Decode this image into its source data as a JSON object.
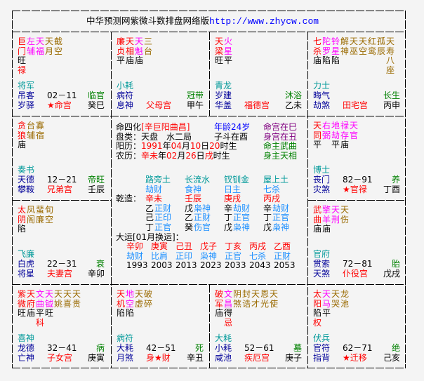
{
  "title": {
    "text": "中华预测网紫微斗数排盘网络版",
    "url": "http://www.zhycw.com"
  },
  "colors": {
    "major": "#ff0000",
    "minor": "#ff00ff",
    "misc": "#9a6a00",
    "boshi": "#009999",
    "sui": "#000099",
    "changsheng": "#008000",
    "palace": "#ff0000",
    "ganzhi": "#000000",
    "range": "#000000",
    "brightness": "#000000",
    "sihua": "#ff0000",
    "blue": "#0000ff",
    "purple": "#800080",
    "green": "#008000",
    "teal": "#009999",
    "god": "#1e90ff",
    "red": "#ff0000",
    "black": "#000000"
  },
  "palaces": [
    {
      "branch": "巳",
      "stars": [
        {
          "n": "巨门",
          "t": "major",
          "b": "旺",
          "h": "禄"
        },
        {
          "n": "左辅",
          "t": "minor"
        },
        {
          "n": "天福",
          "t": "minor"
        },
        {
          "n": "天月",
          "t": "misc"
        },
        {
          "n": "截空",
          "t": "misc"
        }
      ],
      "boshi": "将军",
      "sui": "吊客",
      "jiang": "岁驿",
      "range": "02－11",
      "changsheng": "临官",
      "palace": "★命宫",
      "ganzhi": "癸巳"
    },
    {
      "branch": "午",
      "stars": [
        {
          "n": "廉贞",
          "t": "major",
          "b": "平"
        },
        {
          "n": "天相",
          "t": "major",
          "b": "庙"
        },
        {
          "n": "天魁",
          "t": "minor",
          "b": "庙"
        },
        {
          "n": "三台",
          "t": "misc"
        }
      ],
      "boshi": "小耗",
      "sui": "病符",
      "jiang": "息神",
      "range": "",
      "changsheng": "冠带",
      "palace": "父母宫",
      "ganzhi": "甲午"
    },
    {
      "branch": "未",
      "stars": [
        {
          "n": "天梁",
          "t": "major",
          "b": "旺"
        },
        {
          "n": "火星",
          "t": "minor",
          "b": "平"
        }
      ],
      "boshi": "青龙",
      "sui": "岁建",
      "jiang": "华盖",
      "range": "",
      "changsheng": "沐浴",
      "palace": "福德宫",
      "ganzhi": "乙未"
    },
    {
      "branch": "申",
      "stars": [
        {
          "n": "七杀",
          "t": "major",
          "b": "庙"
        },
        {
          "n": "陀罗",
          "t": "minor",
          "b": "陷"
        },
        {
          "n": "铃星",
          "t": "minor",
          "b": "陷"
        },
        {
          "n": "解神",
          "t": "misc"
        },
        {
          "n": "天巫",
          "t": "misc"
        },
        {
          "n": "天空",
          "t": "misc"
        },
        {
          "n": "红鸾",
          "t": "misc"
        },
        {
          "n": "孤辰",
          "t": "misc"
        },
        {
          "n": "天寿",
          "t": "misc"
        }
      ],
      "extra": [
        {
          "n": "八座",
          "t": "misc"
        }
      ],
      "boshi": "力士",
      "sui": "晦气",
      "jiang": "劫煞",
      "range": "",
      "changsheng": "长生",
      "palace": "田宅宫",
      "ganzhi": "丙申"
    },
    {
      "branch": "辰",
      "stars": [
        {
          "n": "贪狼",
          "t": "major",
          "b": "庙"
        },
        {
          "n": "台辅",
          "t": "misc"
        },
        {
          "n": "寡宿",
          "t": "misc"
        }
      ],
      "boshi": "奏书",
      "sui": "天德",
      "jiang": "攀鞍",
      "range": "12－21",
      "changsheng": "帝旺",
      "palace": "兄弟宫",
      "ganzhi": "壬辰"
    },
    {
      "branch": "酉",
      "stars": [
        {
          "n": "天同",
          "t": "major",
          "b": "平"
        },
        {
          "n": "右弼",
          "t": "minor"
        },
        {
          "n": "地劫",
          "t": "minor",
          "b": "平"
        },
        {
          "n": "禄存",
          "t": "minor",
          "b": "庙"
        },
        {
          "n": "天官",
          "t": "minor"
        }
      ],
      "boshi": "博士",
      "sui": "丧门",
      "jiang": "灾煞",
      "range": "82－91",
      "changsheng": "养",
      "palace": "★官禄",
      "ganzhi": "丁酉"
    },
    {
      "branch": "卯",
      "stars": [
        {
          "n": "太阴",
          "t": "major",
          "b": "陷"
        },
        {
          "n": "凤阁",
          "t": "misc"
        },
        {
          "n": "蜚廉",
          "t": "misc"
        },
        {
          "n": "旬空",
          "t": "misc"
        }
      ],
      "boshi": "飞廉",
      "sui": "白虎",
      "jiang": "将星",
      "range": "22－31",
      "changsheng": "衰",
      "palace": "夫妻宫",
      "ganzhi": "辛卯"
    },
    {
      "branch": "戌",
      "stars": [
        {
          "n": "武曲",
          "t": "major",
          "b": "庙"
        },
        {
          "n": "擎羊",
          "t": "minor",
          "b": "庙"
        },
        {
          "n": "天刑",
          "t": "minor"
        },
        {
          "n": "天伤",
          "t": "misc"
        }
      ],
      "boshi": "官府",
      "sui": "贯索",
      "jiang": "天煞",
      "range": "72－81",
      "changsheng": "胎",
      "palace": "仆役宫",
      "ganzhi": "戊戌"
    },
    {
      "branch": "寅",
      "stars": [
        {
          "n": "紫微",
          "t": "major",
          "b": "旺"
        },
        {
          "n": "天府",
          "t": "major",
          "b": "庙"
        },
        {
          "n": "文曲",
          "t": "minor",
          "b": "平",
          "h": "科"
        },
        {
          "n": "天钺",
          "t": "minor",
          "b": "旺"
        },
        {
          "n": "天姚",
          "t": "misc"
        },
        {
          "n": "天喜",
          "t": "misc"
        },
        {
          "n": "天贵",
          "t": "misc"
        }
      ],
      "boshi": "喜神",
      "sui": "龙德",
      "jiang": "亡神",
      "range": "32－41",
      "changsheng": "病",
      "palace": "子女宫",
      "ganzhi": "庚寅"
    },
    {
      "branch": "丑",
      "stars": [
        {
          "n": "天机",
          "t": "major",
          "b": "陷"
        },
        {
          "n": "地空",
          "t": "minor",
          "b": "陷"
        },
        {
          "n": "天虚",
          "t": "misc"
        },
        {
          "n": "破碎",
          "t": "misc"
        }
      ],
      "boshi": "病符",
      "sui": "大耗",
      "jiang": "月煞",
      "range": "42－51",
      "changsheng": "死",
      "palace": "身★财",
      "ganzhi": "辛丑"
    },
    {
      "branch": "子",
      "stars": [
        {
          "n": "破军",
          "t": "major",
          "b": "庙"
        },
        {
          "n": "文昌",
          "t": "minor",
          "b": "得",
          "h": "忌"
        },
        {
          "n": "阴煞",
          "t": "misc"
        },
        {
          "n": "封诰",
          "t": "misc"
        },
        {
          "n": "天才",
          "t": "misc"
        },
        {
          "n": "恩光",
          "t": "misc"
        },
        {
          "n": "天使",
          "t": "misc"
        }
      ],
      "boshi": "大耗",
      "sui": "小耗",
      "jiang": "咸池",
      "range": "52－61",
      "changsheng": "墓",
      "palace": "疾厄宫",
      "ganzhi": "庚子"
    },
    {
      "branch": "亥",
      "stars": [
        {
          "n": "太阳",
          "t": "major",
          "b": "陷",
          "h": "权"
        },
        {
          "n": "天马",
          "t": "minor",
          "b": "平"
        },
        {
          "n": "天哭",
          "t": "misc"
        },
        {
          "n": "龙池",
          "t": "misc"
        }
      ],
      "boshi": "伏兵",
      "sui": "官符",
      "jiang": "指背",
      "range": "62－71",
      "changsheng": "绝",
      "palace": "★迁移",
      "ganzhi": "己亥"
    }
  ],
  "center": {
    "lines": [
      [
        {
          "t": "命四化",
          "c": "black"
        },
        {
          "t": "[辛巨阳曲昌]",
          "c": "red"
        }
      ],
      [
        {
          "t": "盘类：天盘　水二局",
          "c": "black"
        }
      ],
      [
        {
          "t": "阳历：",
          "c": "black"
        },
        {
          "t": "1991",
          "c": "red"
        },
        {
          "t": "年",
          "c": "black"
        },
        {
          "t": "04",
          "c": "red"
        },
        {
          "t": "月",
          "c": "black"
        },
        {
          "t": "10",
          "c": "red"
        },
        {
          "t": "日",
          "c": "black"
        },
        {
          "t": "20",
          "c": "red"
        },
        {
          "t": "时生",
          "c": "black"
        }
      ],
      [
        {
          "t": "农历：",
          "c": "black"
        },
        {
          "t": "辛未",
          "c": "red"
        },
        {
          "t": "年",
          "c": "black"
        },
        {
          "t": "02",
          "c": "red"
        },
        {
          "t": "月",
          "c": "black"
        },
        {
          "t": "26",
          "c": "red"
        },
        {
          "t": "日",
          "c": "black"
        },
        {
          "t": "戌",
          "c": "red"
        },
        {
          "t": "时生",
          "c": "black"
        }
      ]
    ],
    "mid": [
      {
        "t": "年龄24岁",
        "c": "blue"
      },
      {
        "t": "子斗在酉",
        "c": "black"
      }
    ],
    "right": [
      {
        "t": "命宫在巳",
        "c": "purple"
      },
      {
        "t": "身宫在丑",
        "c": "purple"
      },
      {
        "t": "命主武曲",
        "c": "green"
      },
      {
        "t": "身主天相",
        "c": "green"
      }
    ],
    "qianzao_label": "乾造：",
    "pillars": [
      {
        "nayin": "路旁土",
        "god": "劫财",
        "gz": "辛未",
        "hidden": [
          {
            "s": "乙",
            "g": "正财"
          },
          {
            "s": "己",
            "g": "正印"
          },
          {
            "s": "丁",
            "g": "正官"
          }
        ]
      },
      {
        "nayin": "长流水",
        "god": "食神",
        "gz": "壬辰",
        "hidden": [
          {
            "s": "戊",
            "g": "枭神"
          },
          {
            "s": "乙",
            "g": "正财"
          },
          {
            "s": "癸",
            "g": "伤官"
          }
        ]
      },
      {
        "nayin": "钗钏金",
        "god": "日主",
        "gz": "庚戌",
        "hidden": [
          {
            "s": "辛",
            "g": "劫财"
          },
          {
            "s": "丁",
            "g": "正官"
          },
          {
            "s": "戊",
            "g": "枭神"
          }
        ]
      },
      {
        "nayin": "屋上土",
        "god": "七杀",
        "gz": "丙戌",
        "hidden": [
          {
            "s": "辛",
            "g": "劫财"
          },
          {
            "s": "丁",
            "g": "正官"
          },
          {
            "s": "戊",
            "g": "枭神"
          }
        ]
      }
    ],
    "dayun_label": "大运[01月换运]：",
    "dayun": [
      {
        "gz": "辛卯",
        "god": "劫财",
        "year": "1993"
      },
      {
        "gz": "庚寅",
        "god": "比肩",
        "year": "2003"
      },
      {
        "gz": "己丑",
        "god": "正印",
        "year": "2013"
      },
      {
        "gz": "戊子",
        "god": "枭神",
        "year": "2023"
      },
      {
        "gz": "丁亥",
        "god": "正官",
        "year": "2033"
      },
      {
        "gz": "丙戌",
        "god": "七杀",
        "year": "2043"
      },
      {
        "gz": "乙酉",
        "god": "正财",
        "year": "2053"
      }
    ]
  }
}
